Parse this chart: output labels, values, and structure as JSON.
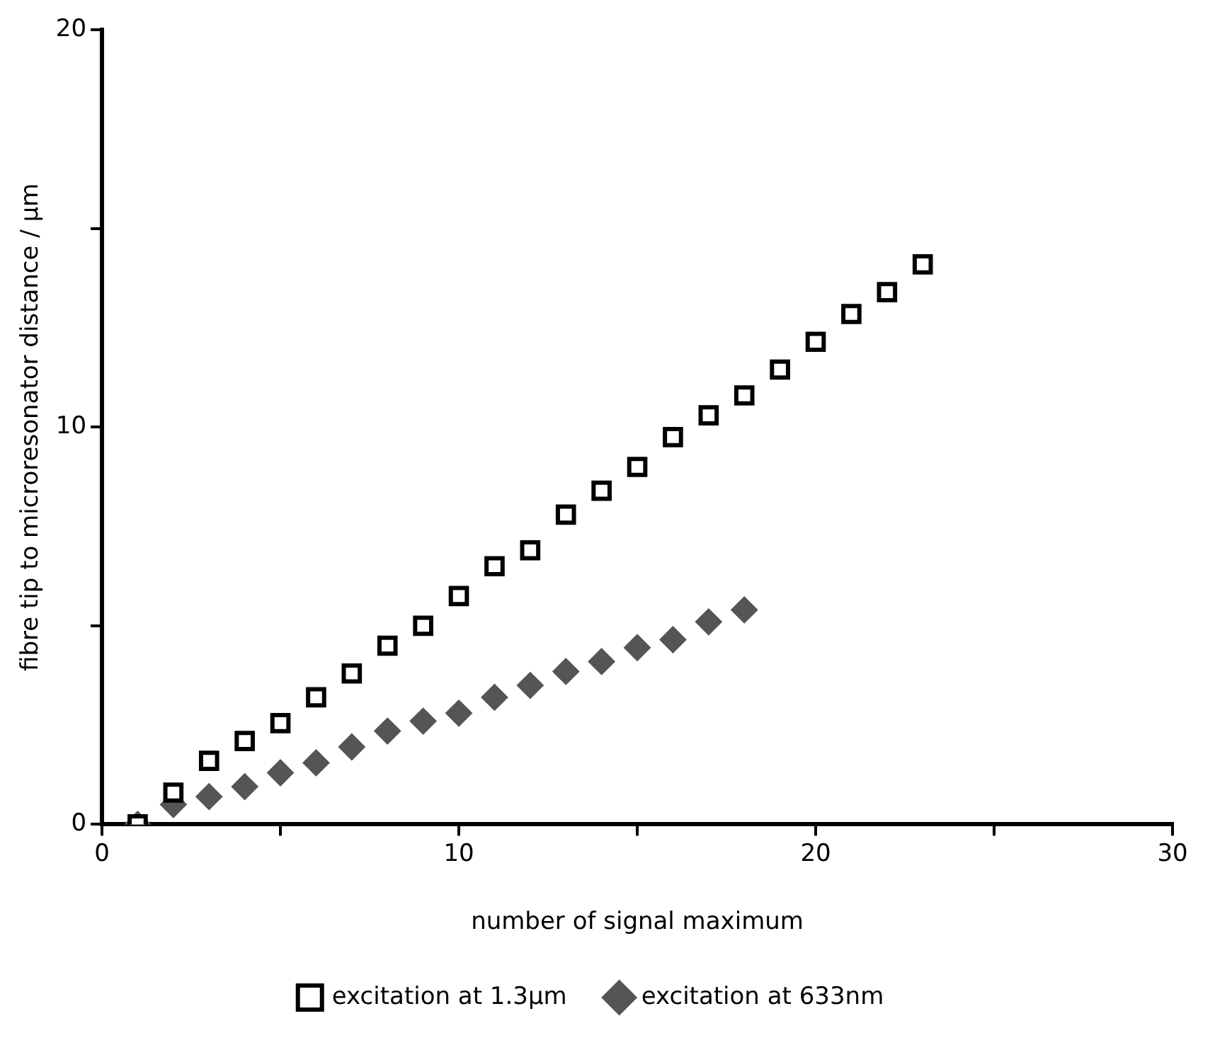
{
  "chart_data": {
    "type": "scatter",
    "xlabel": "number of signal maximum",
    "ylabel": "fibre tip to microresonator distance / µm",
    "xlim": [
      0,
      30
    ],
    "ylim": [
      0,
      20
    ],
    "xticks": [
      0,
      {
        "value": 5,
        "label": null
      },
      10,
      {
        "value": 15,
        "label": null
      },
      20,
      {
        "value": 25,
        "label": null
      },
      30
    ],
    "yticks": [
      0,
      {
        "value": 5,
        "label": null
      },
      10,
      {
        "value": 15,
        "label": null
      },
      20
    ],
    "grid": false,
    "legend": "bottom",
    "series": [
      {
        "name": "excitation at 1.3µm",
        "color": "#000000",
        "marker": "square",
        "x": [
          1,
          2,
          3,
          4,
          5,
          6,
          7,
          8,
          9,
          10,
          11,
          12,
          13,
          14,
          15,
          16,
          17,
          18,
          19,
          20,
          21,
          22,
          23
        ],
        "values": [
          0,
          0.8,
          1.6,
          2.1,
          2.55,
          3.2,
          3.8,
          4.5,
          5.0,
          5.75,
          6.5,
          6.9,
          7.8,
          8.4,
          9.0,
          9.75,
          10.3,
          10.8,
          11.45,
          12.15,
          12.85,
          13.4,
          14.1
        ]
      },
      {
        "name": "excitation at 633nm",
        "color": "#555555",
        "marker": "diamond",
        "x": [
          1,
          2,
          3,
          4,
          5,
          6,
          7,
          8,
          9,
          10,
          11,
          12,
          13,
          14,
          15,
          16,
          17,
          18
        ],
        "values": [
          0,
          0.5,
          0.7,
          0.95,
          1.3,
          1.55,
          1.95,
          2.35,
          2.6,
          2.8,
          3.2,
          3.5,
          3.85,
          4.1,
          4.45,
          4.65,
          5.1,
          5.4
        ]
      }
    ]
  }
}
